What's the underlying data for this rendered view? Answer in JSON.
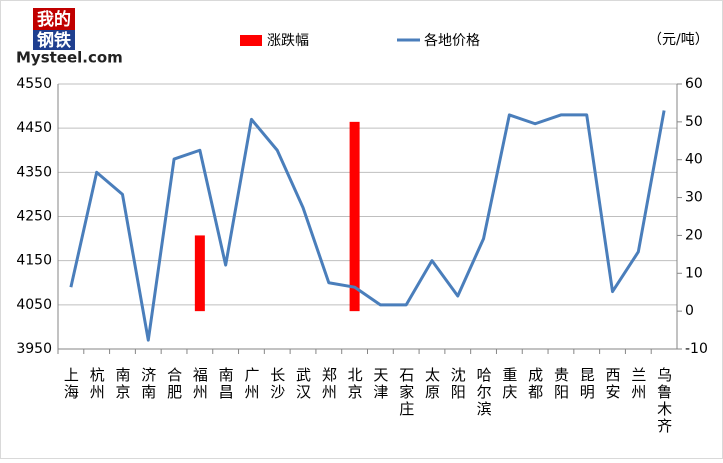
{
  "logo": {
    "line1": "我的",
    "line2": "钢铁",
    "en": "Mysteel.com"
  },
  "chart_data": {
    "type": "bar-line",
    "unit_label": "（元/吨）",
    "categories": [
      "上海",
      "杭州",
      "南京",
      "济南",
      "合肥",
      "福州",
      "南昌",
      "广州",
      "长沙",
      "武汉",
      "郑州",
      "北京",
      "天津",
      "石家庄",
      "太原",
      "沈阳",
      "哈尔滨",
      "重庆",
      "成都",
      "贵阳",
      "昆明",
      "西安",
      "兰州",
      "乌鲁木齐"
    ],
    "series": [
      {
        "name": "涨跌幅",
        "type": "bar",
        "axis": "y2",
        "color": "#ff0000",
        "values": [
          0,
          0,
          0,
          0,
          0,
          20,
          0,
          0,
          0,
          0,
          0,
          50,
          0,
          0,
          0,
          0,
          0,
          0,
          0,
          0,
          0,
          0,
          0,
          0
        ]
      },
      {
        "name": "各地价格",
        "type": "line",
        "axis": "y",
        "color": "#4a7ebb",
        "values": [
          4090,
          4350,
          4300,
          3970,
          4380,
          4400,
          4140,
          4470,
          4400,
          4270,
          4100,
          4090,
          4050,
          4050,
          4150,
          4070,
          4200,
          4480,
          4460,
          4480,
          4480,
          4080,
          4170,
          4490
        ]
      }
    ],
    "ylim": [
      3950,
      4550
    ],
    "yticks": [
      3950,
      4050,
      4150,
      4250,
      4350,
      4450,
      4550
    ],
    "y2lim": [
      -10,
      60
    ],
    "y2ticks": [
      -10,
      0,
      10,
      20,
      30,
      40,
      50,
      60
    ],
    "grid": true
  }
}
